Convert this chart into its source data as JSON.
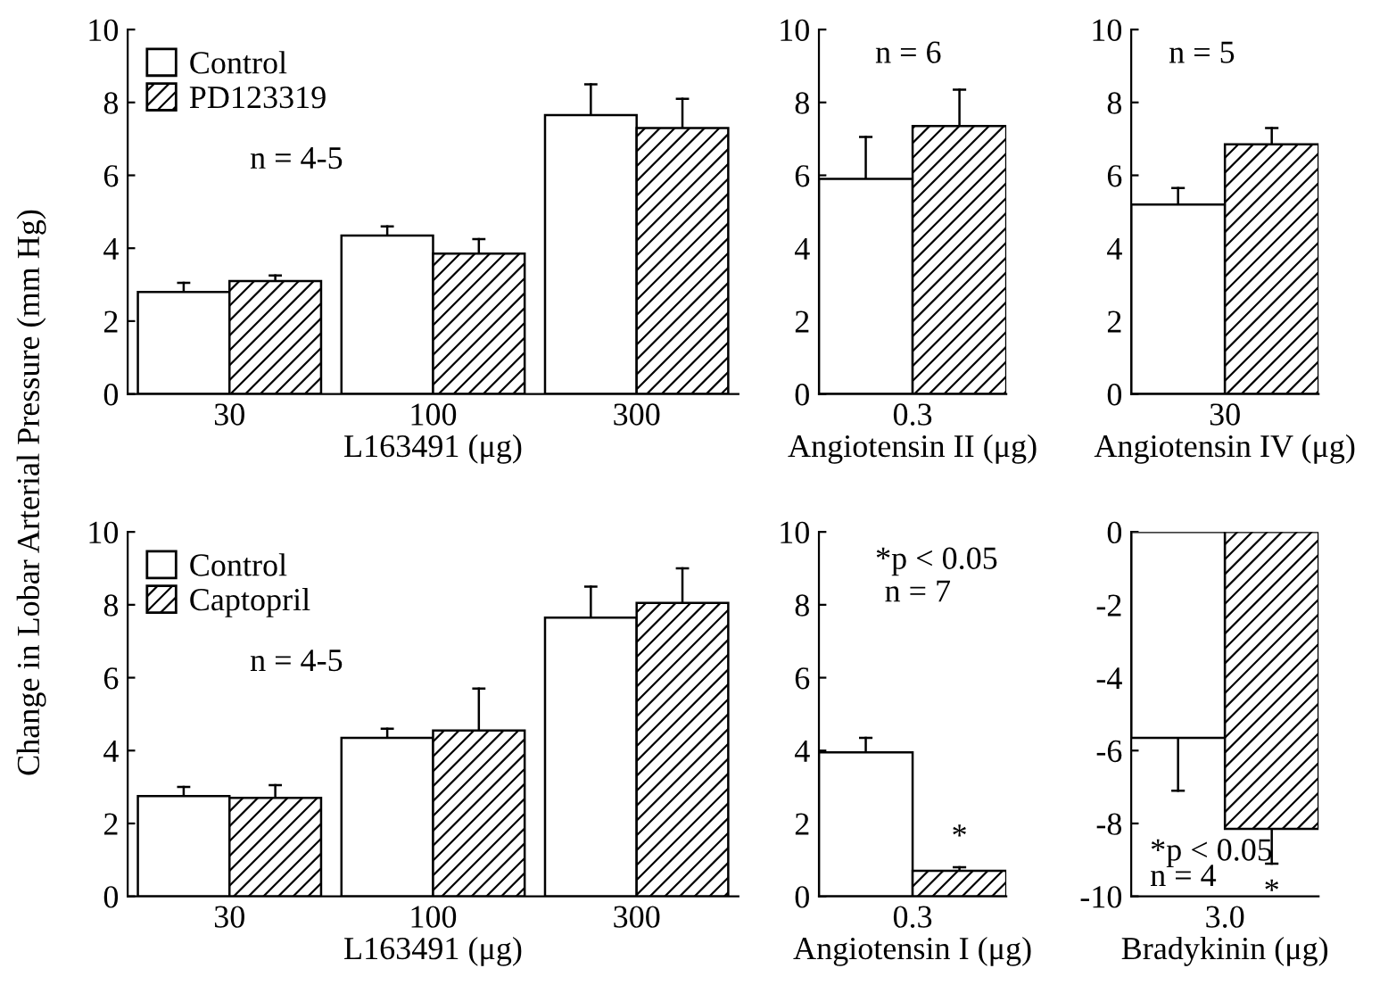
{
  "chart_data": [
    {
      "type": "bar",
      "ylabel": "Change in Lobar Arterial Pressure (mm Hg)",
      "xlabel": "L163491 (μg)",
      "categories": [
        "30",
        "100",
        "300"
      ],
      "ylim": [
        0,
        10
      ],
      "yticks": [
        0,
        2,
        4,
        6,
        8,
        10
      ],
      "legend": "top left",
      "annotations": [
        "n = 4-5"
      ],
      "series": [
        {
          "name": "Control",
          "color": "#ffffff",
          "values": [
            2.8,
            4.35,
            7.65
          ],
          "errors": [
            [
              2.8,
              3.05
            ],
            [
              4.35,
              4.6
            ],
            [
              7.65,
              8.5
            ]
          ]
        },
        {
          "name": "PD123319",
          "color": "#000000",
          "values": [
            3.1,
            3.85,
            7.3
          ],
          "errors": [
            [
              3.1,
              3.25
            ],
            [
              3.85,
              4.25
            ],
            [
              7.3,
              8.1
            ]
          ]
        }
      ]
    },
    {
      "type": "bar",
      "xlabel": "Angiotensin II (μg)",
      "categories": [
        "0.3"
      ],
      "ylim": [
        0,
        10
      ],
      "yticks": [
        0,
        2,
        4,
        6,
        8,
        10
      ],
      "annotations": [
        "n = 6"
      ],
      "series": [
        {
          "color": "#ffffff",
          "values": [
            5.9
          ],
          "errors": [
            [
              5.9,
              7.05
            ]
          ]
        },
        {
          "color": "#000000",
          "values": [
            7.35
          ],
          "errors": [
            [
              7.35,
              8.35
            ]
          ]
        }
      ]
    },
    {
      "type": "bar",
      "xlabel": "Angiotensin IV (μg)",
      "categories": [
        "30"
      ],
      "ylim": [
        0,
        10
      ],
      "yticks": [
        0,
        2,
        4,
        6,
        8,
        10
      ],
      "annotations": [
        "n = 5"
      ],
      "series": [
        {
          "color": "#ffffff",
          "values": [
            5.2
          ],
          "errors": [
            [
              5.2,
              5.65
            ]
          ]
        },
        {
          "color": "#000000",
          "values": [
            6.85
          ],
          "errors": [
            [
              6.85,
              7.3
            ]
          ]
        }
      ]
    },
    {
      "type": "bar",
      "xlabel": "L163491 (μg)",
      "categories": [
        "30",
        "100",
        "300"
      ],
      "ylim": [
        0,
        10
      ],
      "yticks": [
        0,
        2,
        4,
        6,
        8,
        10
      ],
      "legend": "top left",
      "annotations": [
        "n = 4-5"
      ],
      "series": [
        {
          "name": "Control",
          "color": "#ffffff",
          "values": [
            2.75,
            4.35,
            7.65
          ],
          "errors": [
            [
              2.75,
              3.0
            ],
            [
              4.35,
              4.6
            ],
            [
              7.65,
              8.5
            ]
          ]
        },
        {
          "name": "Captopril",
          "color": "#000000",
          "values": [
            2.7,
            4.55,
            8.05
          ],
          "errors": [
            [
              2.7,
              3.05
            ],
            [
              4.55,
              5.7
            ],
            [
              8.05,
              9.0
            ]
          ]
        }
      ]
    },
    {
      "type": "bar",
      "xlabel": "Angiotensin I (μg)",
      "categories": [
        "0.3"
      ],
      "ylim": [
        0,
        10
      ],
      "yticks": [
        0,
        2,
        4,
        6,
        8,
        10
      ],
      "annotations": [
        "*p < 0.05",
        "n = 7",
        "*"
      ],
      "series": [
        {
          "color": "#ffffff",
          "values": [
            3.95
          ],
          "errors": [
            [
              3.95,
              4.35
            ]
          ]
        },
        {
          "color": "#000000",
          "values": [
            0.7
          ],
          "errors": [
            [
              0.7,
              0.8
            ]
          ]
        }
      ]
    },
    {
      "type": "bar",
      "xlabel": "Bradykinin (μg)",
      "categories": [
        "3.0"
      ],
      "ylim": [
        -10,
        0
      ],
      "yticks": [
        -10,
        -8,
        -6,
        -4,
        -2,
        0
      ],
      "annotations": [
        "*p < 0.05",
        "n = 4",
        "*"
      ],
      "series": [
        {
          "color": "#ffffff",
          "values": [
            -5.65
          ],
          "errors": [
            [
              -7.1,
              -5.65
            ]
          ]
        },
        {
          "color": "#000000",
          "values": [
            -8.15
          ],
          "errors": [
            [
              -9.1,
              -8.15
            ]
          ]
        }
      ]
    }
  ]
}
